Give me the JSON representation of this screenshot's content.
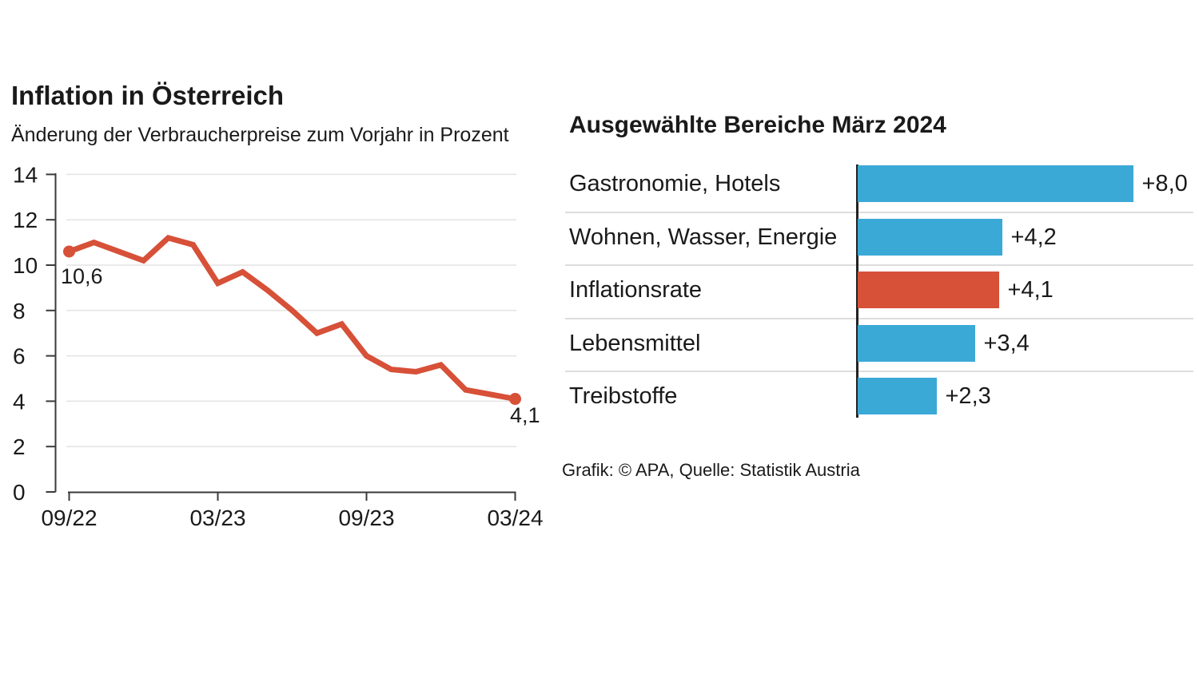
{
  "accent_colors": {
    "line_red": "#d75038",
    "bar_blue": "#3ba9d6",
    "bar_red": "#d75038",
    "grid_gray": "#e3e3e3",
    "axis_gray": "#3a3a3a",
    "separator_gray": "#dddddd",
    "text_dark": "#1a1a1a"
  },
  "chart_data": [
    {
      "type": "line",
      "title": "Inflation in Österreich",
      "subtitle": "Änderung der Verbraucherpreise zum Vorjahr in Prozent",
      "x": [
        "09/22",
        "10/22",
        "11/22",
        "12/22",
        "01/23",
        "02/23",
        "03/23",
        "04/23",
        "05/23",
        "06/23",
        "07/23",
        "08/23",
        "09/23",
        "10/23",
        "11/23",
        "12/23",
        "01/24",
        "02/24",
        "03/24"
      ],
      "values": [
        10.6,
        11.0,
        10.6,
        10.2,
        11.2,
        10.9,
        9.2,
        9.7,
        8.9,
        8.0,
        7.0,
        7.4,
        6.0,
        5.4,
        5.3,
        5.6,
        4.5,
        4.3,
        4.1
      ],
      "xtick_labels": [
        "09/22",
        "03/23",
        "09/23",
        "03/24"
      ],
      "yticks": [
        0,
        2,
        4,
        6,
        8,
        10,
        12,
        14
      ],
      "ylim": [
        0,
        14
      ],
      "grid": true,
      "first_point_label": "10,6",
      "last_point_label": "4,1",
      "line_color": "#d75038",
      "marker_color": "#d75038"
    },
    {
      "type": "bar",
      "title": "Ausgewählte Bereiche März 2024",
      "orientation": "horizontal",
      "categories": [
        "Gastronomie, Hotels",
        "Wohnen, Wasser, Energie",
        "Inflationsrate",
        "Lebensmittel",
        "Treibstoffe"
      ],
      "values": [
        8.0,
        4.2,
        4.1,
        3.4,
        2.3
      ],
      "value_labels": [
        "+8,0",
        "+4,2",
        "+4,1",
        "+3,4",
        "+2,3"
      ],
      "bar_colors": [
        "#3ba9d6",
        "#3ba9d6",
        "#d75038",
        "#3ba9d6",
        "#3ba9d6"
      ],
      "xlim": [
        0,
        8.0
      ],
      "grid": false,
      "legend": "none"
    }
  ],
  "footer": {
    "credit": "Grafik: © APA, Quelle: Statistik Austria"
  }
}
